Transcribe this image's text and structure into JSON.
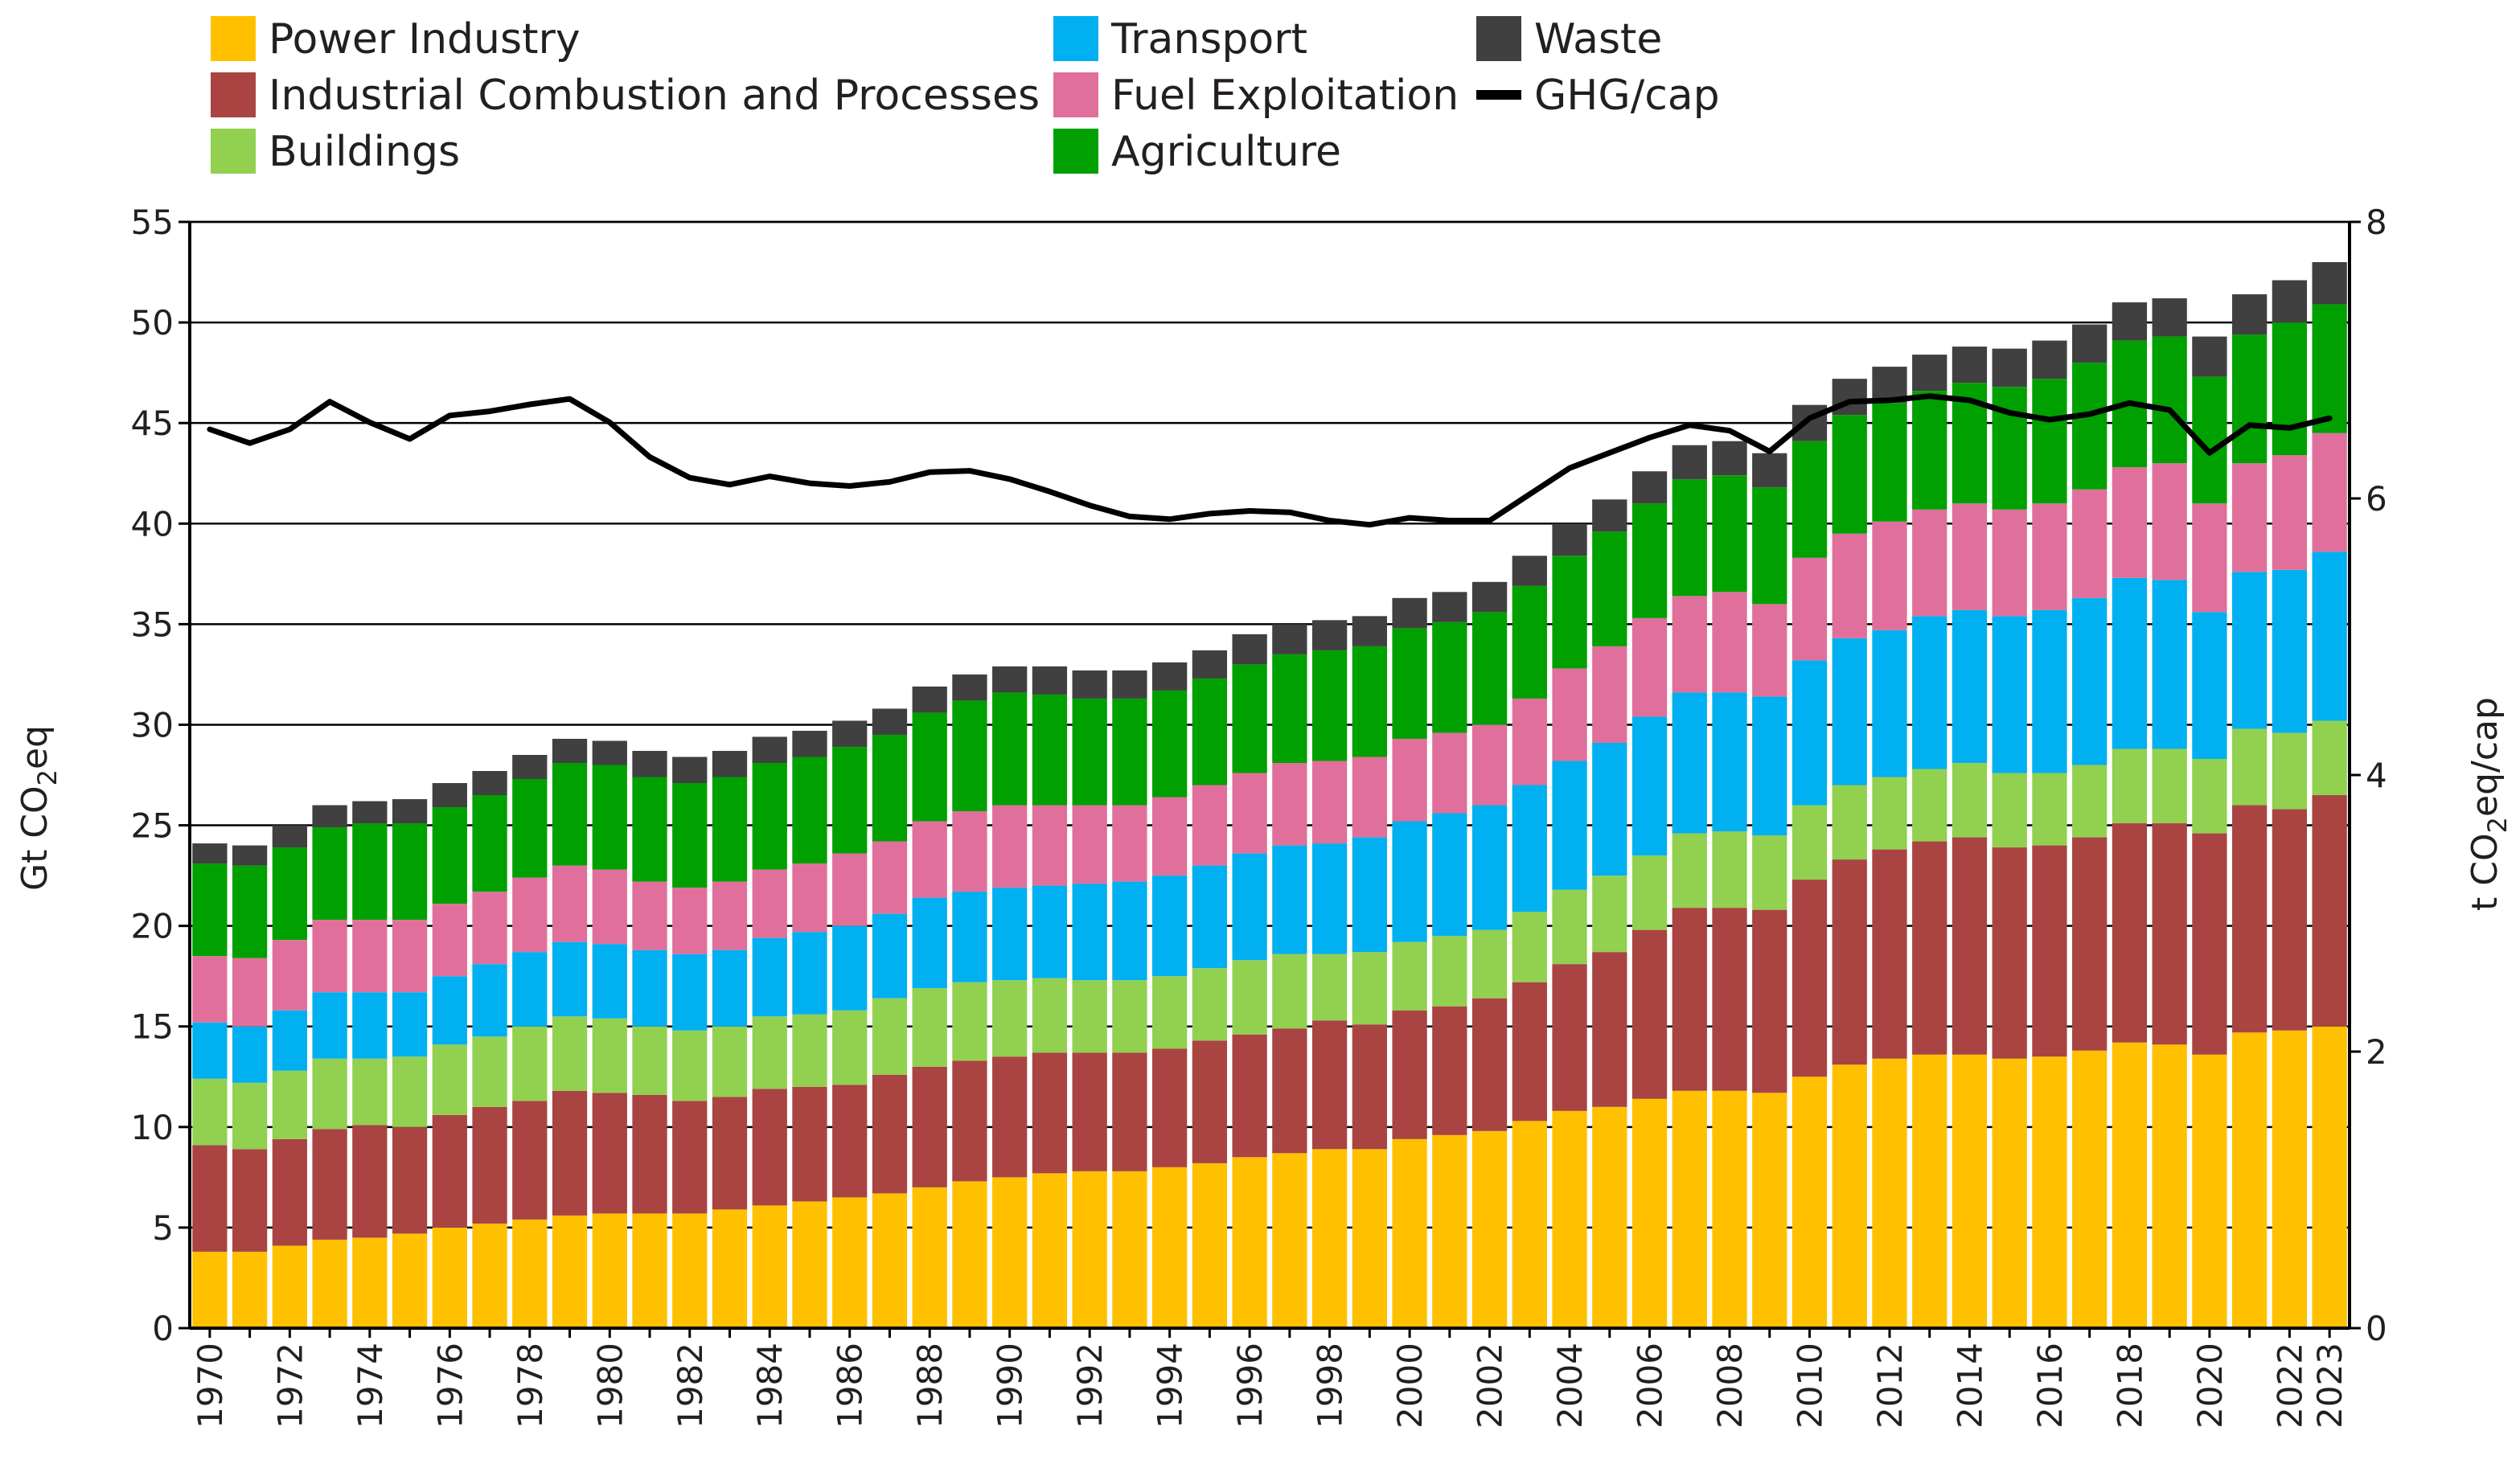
{
  "chart_data": {
    "type": "bar",
    "stacked": true,
    "title": "",
    "xlabel": "",
    "ylabel": "Gt CO2eq",
    "ylabel_parts": [
      "Gt CO",
      "2",
      "eq"
    ],
    "y2label": "t CO2eq/cap",
    "y2label_parts": [
      "t CO",
      "2",
      "eq/cap"
    ],
    "ylim": [
      0,
      55
    ],
    "y2lim": [
      0,
      8
    ],
    "yticks": [
      0,
      5,
      10,
      15,
      20,
      25,
      30,
      35,
      40,
      45,
      50,
      55
    ],
    "y2ticks": [
      0,
      2,
      4,
      6,
      8
    ],
    "grid": true,
    "legend_position": "top",
    "categories": [
      1970,
      1971,
      1972,
      1973,
      1974,
      1975,
      1976,
      1977,
      1978,
      1979,
      1980,
      1981,
      1982,
      1983,
      1984,
      1985,
      1986,
      1987,
      1988,
      1989,
      1990,
      1991,
      1992,
      1993,
      1994,
      1995,
      1996,
      1997,
      1998,
      1999,
      2000,
      2001,
      2002,
      2003,
      2004,
      2005,
      2006,
      2007,
      2008,
      2009,
      2010,
      2011,
      2012,
      2013,
      2014,
      2015,
      2016,
      2017,
      2018,
      2019,
      2020,
      2021,
      2022,
      2023
    ],
    "xtick_labels": [
      "1970",
      "1972",
      "1974",
      "1976",
      "1978",
      "1980",
      "1982",
      "1984",
      "1986",
      "1988",
      "1990",
      "1992",
      "1994",
      "1996",
      "1998",
      "2000",
      "2002",
      "2004",
      "2006",
      "2008",
      "2010",
      "2012",
      "2014",
      "2016",
      "2018",
      "2020",
      "2022",
      "2023"
    ],
    "series": [
      {
        "name": "Power Industry",
        "color": "#ffc000",
        "values": [
          3.8,
          3.8,
          4.1,
          4.4,
          4.5,
          4.7,
          5.0,
          5.2,
          5.4,
          5.6,
          5.7,
          5.7,
          5.7,
          5.9,
          6.1,
          6.3,
          6.5,
          6.7,
          7.0,
          7.3,
          7.5,
          7.7,
          7.8,
          7.8,
          8.0,
          8.2,
          8.5,
          8.7,
          8.9,
          8.9,
          9.4,
          9.6,
          9.8,
          10.3,
          10.8,
          11.0,
          11.4,
          11.8,
          11.8,
          11.7,
          12.5,
          13.1,
          13.4,
          13.6,
          13.6,
          13.4,
          13.5,
          13.8,
          14.2,
          14.1,
          13.6,
          14.7,
          14.8,
          15.0
        ]
      },
      {
        "name": "Industrial Combustion and Processes",
        "color": "#a94442",
        "values": [
          5.3,
          5.1,
          5.3,
          5.5,
          5.6,
          5.3,
          5.6,
          5.8,
          5.9,
          6.2,
          6.0,
          5.9,
          5.6,
          5.6,
          5.8,
          5.7,
          5.6,
          5.9,
          6.0,
          6.0,
          6.0,
          6.0,
          5.9,
          5.9,
          5.9,
          6.1,
          6.1,
          6.2,
          6.4,
          6.2,
          6.4,
          6.4,
          6.6,
          6.9,
          7.3,
          7.7,
          8.4,
          9.1,
          9.1,
          9.1,
          9.8,
          10.2,
          10.4,
          10.6,
          10.8,
          10.5,
          10.5,
          10.6,
          10.9,
          11.0,
          11.0,
          11.3,
          11.0,
          11.5
        ]
      },
      {
        "name": "Buildings",
        "color": "#92d050",
        "values": [
          3.3,
          3.3,
          3.4,
          3.5,
          3.3,
          3.5,
          3.5,
          3.5,
          3.7,
          3.7,
          3.7,
          3.4,
          3.5,
          3.5,
          3.6,
          3.6,
          3.7,
          3.8,
          3.9,
          3.9,
          3.8,
          3.7,
          3.6,
          3.6,
          3.6,
          3.6,
          3.7,
          3.7,
          3.3,
          3.6,
          3.4,
          3.5,
          3.4,
          3.5,
          3.7,
          3.8,
          3.7,
          3.7,
          3.8,
          3.7,
          3.7,
          3.7,
          3.6,
          3.6,
          3.7,
          3.7,
          3.6,
          3.6,
          3.7,
          3.7,
          3.7,
          3.8,
          3.8,
          3.7
        ]
      },
      {
        "name": "Transport",
        "color": "#00b0f0",
        "values": [
          2.8,
          2.8,
          3.0,
          3.3,
          3.3,
          3.2,
          3.4,
          3.6,
          3.7,
          3.7,
          3.7,
          3.8,
          3.8,
          3.8,
          3.9,
          4.1,
          4.2,
          4.2,
          4.5,
          4.5,
          4.6,
          4.6,
          4.8,
          4.9,
          5.0,
          5.1,
          5.3,
          5.4,
          5.5,
          5.7,
          6.0,
          6.1,
          6.2,
          6.3,
          6.4,
          6.6,
          6.9,
          7.0,
          6.9,
          6.9,
          7.2,
          7.3,
          7.3,
          7.6,
          7.6,
          7.8,
          8.1,
          8.3,
          8.5,
          8.4,
          7.3,
          7.8,
          8.1,
          8.4
        ]
      },
      {
        "name": "Fuel Exploitation",
        "color": "#e0709b",
        "values": [
          3.3,
          3.4,
          3.5,
          3.6,
          3.6,
          3.6,
          3.6,
          3.6,
          3.7,
          3.8,
          3.7,
          3.4,
          3.3,
          3.4,
          3.4,
          3.4,
          3.6,
          3.6,
          3.8,
          4.0,
          4.1,
          4.0,
          3.9,
          3.8,
          3.9,
          4.0,
          4.0,
          4.1,
          4.1,
          4.0,
          4.1,
          4.0,
          4.0,
          4.3,
          4.6,
          4.8,
          4.9,
          4.8,
          5.0,
          4.6,
          5.1,
          5.2,
          5.4,
          5.3,
          5.3,
          5.3,
          5.3,
          5.4,
          5.5,
          5.8,
          5.4,
          5.4,
          5.7,
          5.9
        ]
      },
      {
        "name": "Agriculture",
        "color": "#00a000",
        "values": [
          4.6,
          4.6,
          4.6,
          4.6,
          4.8,
          4.8,
          4.8,
          4.8,
          4.9,
          5.1,
          5.2,
          5.2,
          5.2,
          5.2,
          5.3,
          5.3,
          5.3,
          5.3,
          5.4,
          5.5,
          5.6,
          5.5,
          5.3,
          5.3,
          5.3,
          5.3,
          5.4,
          5.4,
          5.5,
          5.5,
          5.5,
          5.5,
          5.6,
          5.6,
          5.6,
          5.7,
          5.7,
          5.8,
          5.8,
          5.8,
          5.8,
          5.9,
          5.9,
          5.9,
          6.0,
          6.1,
          6.2,
          6.3,
          6.3,
          6.3,
          6.3,
          6.4,
          6.6,
          6.4
        ]
      },
      {
        "name": "Waste",
        "color": "#404040",
        "values": [
          1.0,
          1.0,
          1.1,
          1.1,
          1.1,
          1.2,
          1.2,
          1.2,
          1.2,
          1.2,
          1.2,
          1.3,
          1.3,
          1.3,
          1.3,
          1.3,
          1.3,
          1.3,
          1.3,
          1.3,
          1.3,
          1.4,
          1.4,
          1.4,
          1.4,
          1.4,
          1.5,
          1.5,
          1.5,
          1.5,
          1.5,
          1.5,
          1.5,
          1.5,
          1.6,
          1.6,
          1.6,
          1.7,
          1.7,
          1.7,
          1.8,
          1.8,
          1.8,
          1.8,
          1.8,
          1.9,
          1.9,
          1.9,
          1.9,
          1.9,
          2.0,
          2.0,
          2.1,
          2.1
        ]
      }
    ],
    "line_series": {
      "name": "GHG/cap",
      "color": "#000000",
      "axis": "right",
      "values": [
        6.5,
        6.4,
        6.5,
        6.7,
        6.55,
        6.43,
        6.6,
        6.63,
        6.68,
        6.72,
        6.55,
        6.3,
        6.15,
        6.1,
        6.16,
        6.11,
        6.09,
        6.12,
        6.19,
        6.2,
        6.14,
        6.05,
        5.95,
        5.87,
        5.85,
        5.89,
        5.91,
        5.9,
        5.84,
        5.81,
        5.86,
        5.84,
        5.84,
        6.03,
        6.22,
        6.33,
        6.44,
        6.53,
        6.49,
        6.34,
        6.58,
        6.7,
        6.71,
        6.74,
        6.71,
        6.62,
        6.57,
        6.61,
        6.69,
        6.64,
        6.33,
        6.53,
        6.51,
        6.58
      ]
    }
  },
  "legend": {
    "items": [
      {
        "label": "Power Industry",
        "color": "#ffc000",
        "kind": "box"
      },
      {
        "label": "Industrial Combustion and Processes",
        "color": "#a94442",
        "kind": "box"
      },
      {
        "label": "Buildings",
        "color": "#92d050",
        "kind": "box"
      },
      {
        "label": "Transport",
        "color": "#00b0f0",
        "kind": "box"
      },
      {
        "label": "Fuel Exploitation",
        "color": "#e0709b",
        "kind": "box"
      },
      {
        "label": "Agriculture",
        "color": "#00a000",
        "kind": "box"
      },
      {
        "label": "Waste",
        "color": "#404040",
        "kind": "box"
      },
      {
        "label": "GHG/cap",
        "color": "#000000",
        "kind": "line"
      }
    ]
  }
}
